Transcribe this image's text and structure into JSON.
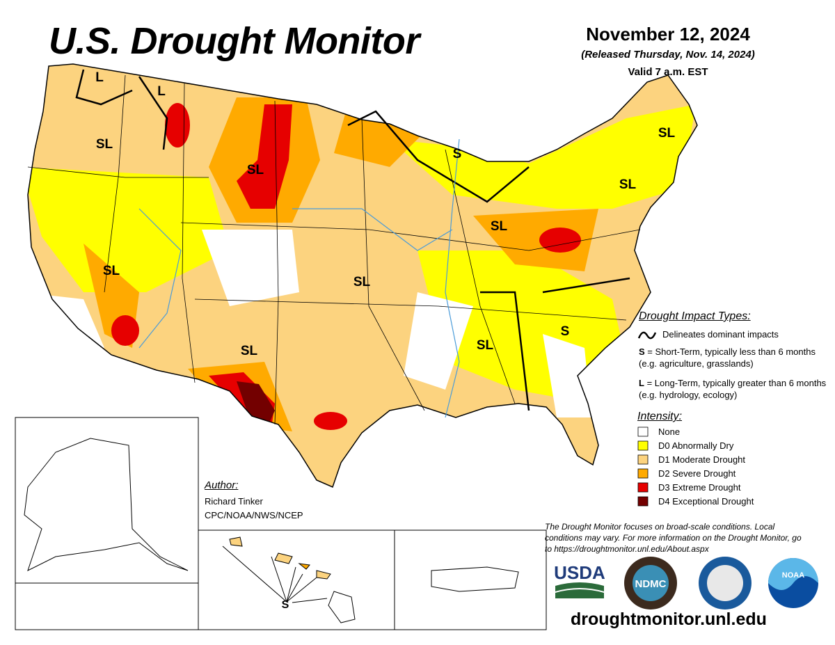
{
  "header": {
    "title": "U.S. Drought Monitor",
    "date": "November 12, 2024",
    "released": "(Released Thursday, Nov. 14, 2024)",
    "valid": "Valid 7 a.m. EST"
  },
  "map_labels": [
    "L",
    "L",
    "SL",
    "SL",
    "S",
    "SL",
    "SL",
    "SL",
    "SL",
    "SL",
    "SL",
    "SL",
    "S",
    "S"
  ],
  "impact_types": {
    "heading": "Drought Impact Types:",
    "line_text": "Delineates dominant impacts",
    "short": {
      "key": "S",
      "text": "= Short-Term, typically less than 6 months (e.g. agriculture, grasslands)"
    },
    "long": {
      "key": "L",
      "text": "= Long-Term, typically greater than 6 months (e.g. hydrology, ecology)"
    }
  },
  "intensity": {
    "heading": "Intensity:",
    "items": [
      "None",
      "D0 Abnormally Dry",
      "D1 Moderate Drought",
      "D2 Severe Drought",
      "D3 Extreme Drought",
      "D4 Exceptional Drought"
    ]
  },
  "author": {
    "heading": "Author:",
    "name": "Richard Tinker",
    "org": "CPC/NOAA/NWS/NCEP"
  },
  "note": "The Drought Monitor focuses on broad-scale conditions. Local conditions may vary. For more information on the Drought Monitor, go to https://droughtmonitor.unl.edu/About.aspx",
  "logos": [
    "USDA",
    "NDMC",
    "NOAA"
  ],
  "url": "droughtmonitor.unl.edu"
}
